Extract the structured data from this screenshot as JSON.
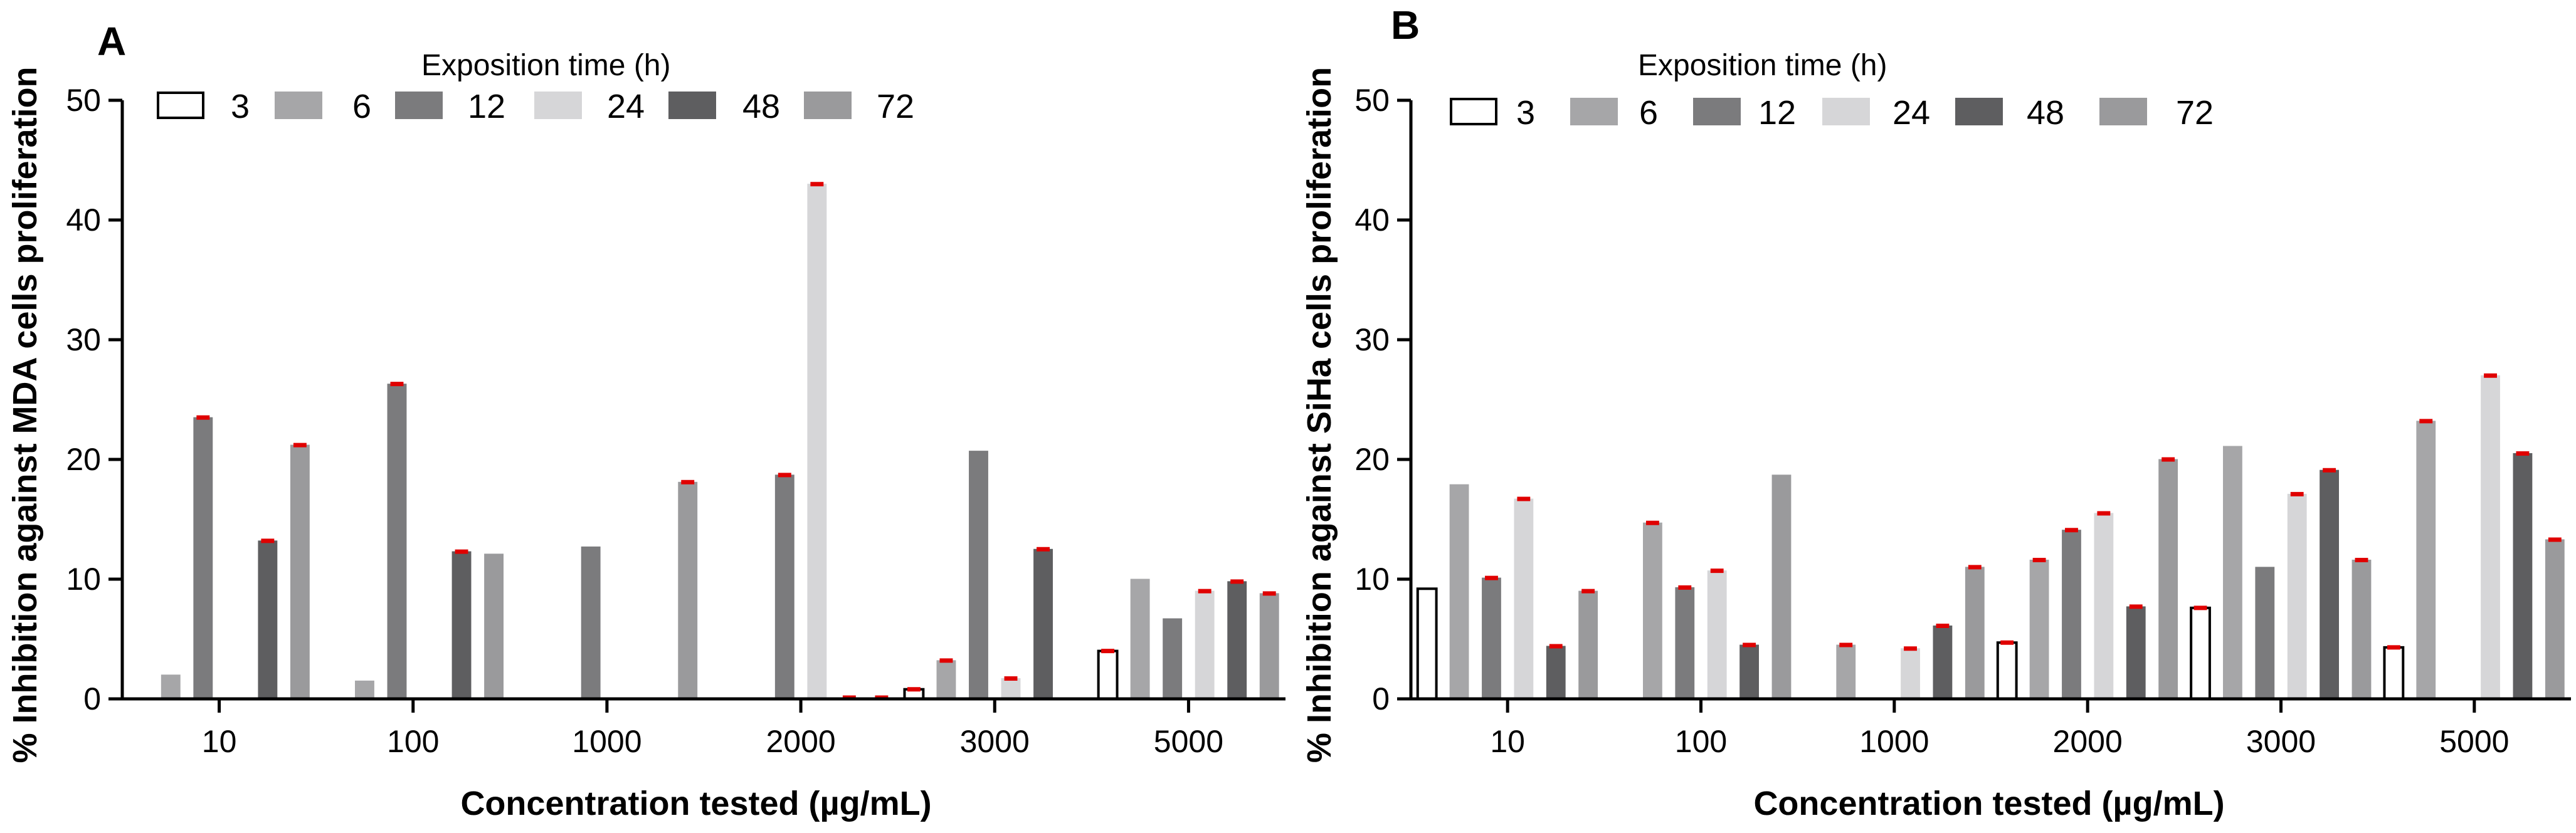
{
  "legend": {
    "title": "Exposition time (h)",
    "entries": [
      {
        "label": "3",
        "fill": "#ffffff",
        "stroke": "#000000"
      },
      {
        "label": "6",
        "fill": "#a6a6a8",
        "stroke": "#a6a6a8"
      },
      {
        "label": "12",
        "fill": "#7b7b7d",
        "stroke": "#7b7b7d"
      },
      {
        "label": "24",
        "fill": "#d6d6d8",
        "stroke": "#d6d6d8"
      },
      {
        "label": "48",
        "fill": "#5e5e60",
        "stroke": "#5e5e60"
      },
      {
        "label": "72",
        "fill": "#9a9a9c",
        "stroke": "#9a9a9c"
      }
    ]
  },
  "error_bar_color": "#e00000",
  "chart_data": [
    {
      "panel": "A",
      "type": "bar",
      "title": "",
      "xlabel": "Concentration tested (µg/mL)",
      "ylabel": "% Inhibition against MDA cells proliferation",
      "ylim": [
        0,
        50
      ],
      "yticks": [
        "0",
        "10",
        "20",
        "30",
        "40",
        "50"
      ],
      "categories": [
        "10",
        "100",
        "1000",
        "2000",
        "3000",
        "5000"
      ],
      "series": [
        {
          "name": "3",
          "values": [
            0,
            0,
            0,
            0,
            0.8,
            4.0
          ],
          "error_bars": [
            false,
            false,
            false,
            false,
            true,
            true
          ]
        },
        {
          "name": "6",
          "values": [
            2.0,
            1.5,
            0,
            0,
            3.2,
            10.0
          ],
          "error_bars": [
            false,
            false,
            false,
            false,
            true,
            false
          ]
        },
        {
          "name": "12",
          "values": [
            23.5,
            26.3,
            12.7,
            18.7,
            20.7,
            6.7
          ],
          "error_bars": [
            true,
            true,
            false,
            true,
            false,
            false
          ]
        },
        {
          "name": "24",
          "values": [
            0,
            0,
            0,
            43.0,
            1.7,
            9.0
          ],
          "error_bars": [
            false,
            false,
            false,
            true,
            true,
            true
          ]
        },
        {
          "name": "48",
          "values": [
            13.2,
            12.3,
            0,
            0.1,
            12.5,
            9.8
          ],
          "error_bars": [
            true,
            true,
            false,
            true,
            true,
            true
          ]
        },
        {
          "name": "72",
          "values": [
            21.2,
            12.1,
            18.1,
            0.1,
            0,
            8.8
          ],
          "error_bars": [
            true,
            false,
            true,
            true,
            false,
            true
          ]
        }
      ]
    },
    {
      "panel": "B",
      "type": "bar",
      "title": "",
      "xlabel": "Concentration tested (µg/mL)",
      "ylabel": "% Inhibition against SiHa cells proliferation",
      "ylim": [
        0,
        50
      ],
      "yticks": [
        "0",
        "10",
        "20",
        "30",
        "40",
        "50"
      ],
      "categories": [
        "10",
        "100",
        "1000",
        "2000",
        "3000",
        "5000"
      ],
      "series": [
        {
          "name": "3",
          "values": [
            9.2,
            0,
            0,
            4.7,
            7.6,
            4.3
          ],
          "error_bars": [
            false,
            false,
            false,
            true,
            true,
            true
          ]
        },
        {
          "name": "6",
          "values": [
            17.9,
            14.7,
            4.5,
            11.6,
            21.1,
            23.2
          ],
          "error_bars": [
            false,
            true,
            true,
            true,
            false,
            true
          ]
        },
        {
          "name": "12",
          "values": [
            10.1,
            9.3,
            0,
            14.1,
            11.0,
            0
          ],
          "error_bars": [
            true,
            true,
            false,
            true,
            false,
            false
          ]
        },
        {
          "name": "24",
          "values": [
            16.7,
            10.7,
            4.2,
            15.5,
            17.1,
            27.0
          ],
          "error_bars": [
            true,
            true,
            true,
            true,
            true,
            true
          ]
        },
        {
          "name": "48",
          "values": [
            4.4,
            4.5,
            6.1,
            7.7,
            19.1,
            20.5
          ],
          "error_bars": [
            true,
            true,
            true,
            true,
            true,
            true
          ]
        },
        {
          "name": "72",
          "values": [
            9.0,
            18.7,
            11.0,
            20.0,
            11.6,
            13.3
          ],
          "error_bars": [
            true,
            false,
            true,
            true,
            true,
            true
          ]
        }
      ]
    }
  ]
}
